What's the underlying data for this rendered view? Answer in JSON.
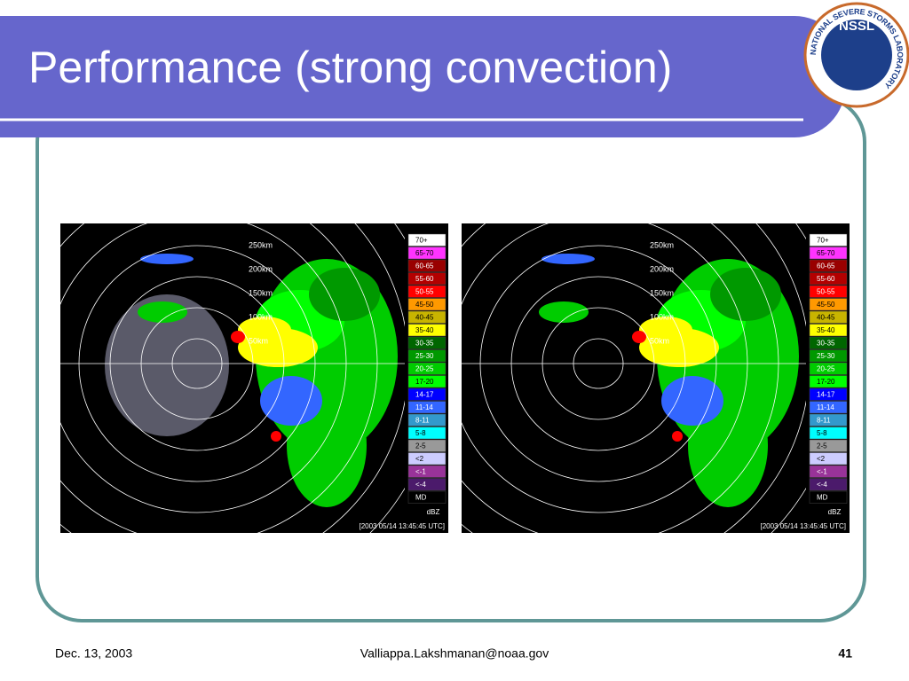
{
  "title": "Performance (strong convection)",
  "logo": {
    "abbr": "NSSL",
    "ring_text": "NATIONAL SEVERE STORMS LABORATORY"
  },
  "panels": [
    {
      "ring_labels": [
        "250km",
        "200km",
        "150km",
        "100km",
        "50km"
      ],
      "legend": [
        {
          "label": "70+",
          "color": "#ffffff"
        },
        {
          "label": "65-70",
          "color": "#ff33ff"
        },
        {
          "label": "60-65",
          "color": "#990000"
        },
        {
          "label": "55-60",
          "color": "#b30000"
        },
        {
          "label": "50-55",
          "color": "#ff0000"
        },
        {
          "label": "45-50",
          "color": "#ff9900"
        },
        {
          "label": "40-45",
          "color": "#c8b400"
        },
        {
          "label": "35-40",
          "color": "#ffff00"
        },
        {
          "label": "30-35",
          "color": "#006600"
        },
        {
          "label": "25-30",
          "color": "#009900"
        },
        {
          "label": "20-25",
          "color": "#00cc00"
        },
        {
          "label": "17-20",
          "color": "#00ff00"
        },
        {
          "label": "14-17",
          "color": "#0000ff"
        },
        {
          "label": "11-14",
          "color": "#3366ff"
        },
        {
          "label": "8-11",
          "color": "#3399cc"
        },
        {
          "label": "5-8",
          "color": "#00ffff"
        },
        {
          "label": "2-5",
          "color": "#999999"
        },
        {
          "label": "<2",
          "color": "#ccccff"
        },
        {
          "label": "<-1",
          "color": "#993399"
        },
        {
          "label": "<-4",
          "color": "#4b1a6b"
        },
        {
          "label": "MD",
          "color": "#000000"
        }
      ],
      "unit": "dBZ",
      "timestamp": "[2003 05/14 13:45:45 UTC]"
    },
    {
      "ring_labels": [
        "250km",
        "200km",
        "150km",
        "100km",
        "50km"
      ],
      "legend": [
        {
          "label": "70+",
          "color": "#ffffff"
        },
        {
          "label": "65-70",
          "color": "#ff33ff"
        },
        {
          "label": "60-65",
          "color": "#990000"
        },
        {
          "label": "55-60",
          "color": "#b30000"
        },
        {
          "label": "50-55",
          "color": "#ff0000"
        },
        {
          "label": "45-50",
          "color": "#ff9900"
        },
        {
          "label": "40-45",
          "color": "#c8b400"
        },
        {
          "label": "35-40",
          "color": "#ffff00"
        },
        {
          "label": "30-35",
          "color": "#006600"
        },
        {
          "label": "25-30",
          "color": "#009900"
        },
        {
          "label": "20-25",
          "color": "#00cc00"
        },
        {
          "label": "17-20",
          "color": "#00ff00"
        },
        {
          "label": "14-17",
          "color": "#0000ff"
        },
        {
          "label": "11-14",
          "color": "#3366ff"
        },
        {
          "label": "8-11",
          "color": "#3399cc"
        },
        {
          "label": "5-8",
          "color": "#00ffff"
        },
        {
          "label": "2-5",
          "color": "#999999"
        },
        {
          "label": "<2",
          "color": "#ccccff"
        },
        {
          "label": "<-1",
          "color": "#993399"
        },
        {
          "label": "<-4",
          "color": "#4b1a6b"
        },
        {
          "label": "MD",
          "color": "#000000"
        }
      ],
      "unit": "dBZ",
      "timestamp": "[2003 05/14 13:45:45 UTC]"
    }
  ],
  "footer": {
    "date": "Dec. 13, 2003",
    "author": "Valliappa.Lakshmanan@noaa.gov",
    "page": "41"
  }
}
